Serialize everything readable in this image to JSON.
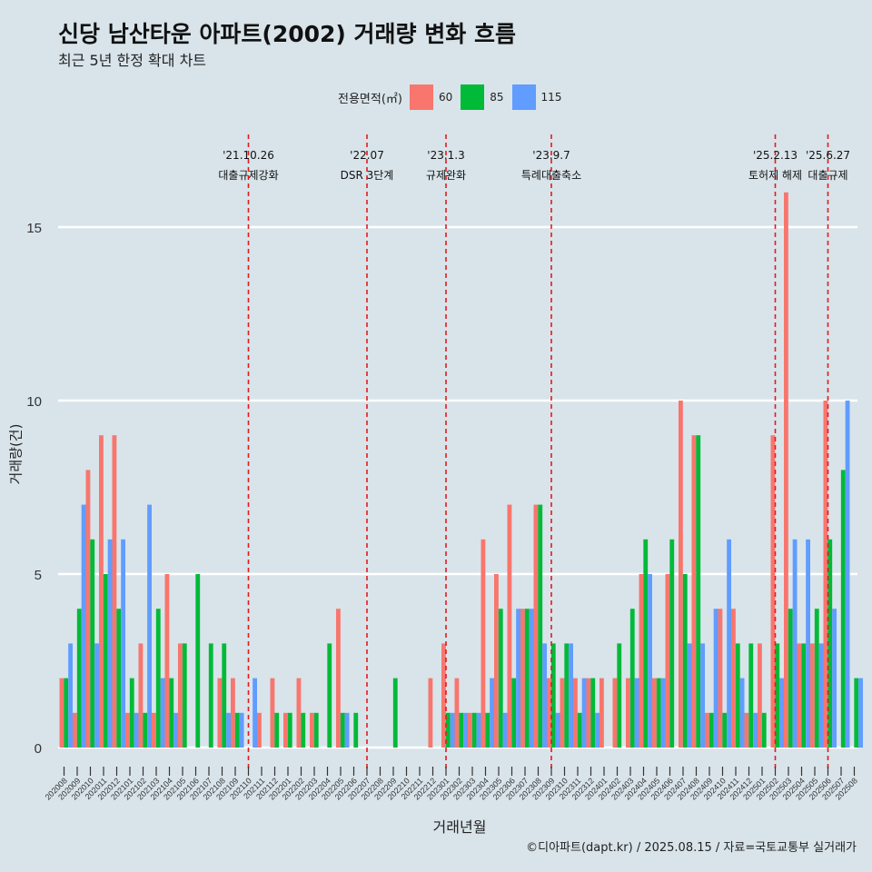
{
  "title": "신당 남산타운 아파트(2002) 거래량 변화 흐름",
  "subtitle": "최근 5년 한정 확대 차트",
  "caption": "©디아파트(dapt.kr) / 2025.08.15 / 자료=국토교통부 실거래가",
  "legend": {
    "title": "전용면적(㎡)",
    "items": [
      {
        "label": "60",
        "color": "#f8766d"
      },
      {
        "label": "85",
        "color": "#00ba38"
      },
      {
        "label": "115",
        "color": "#619cff"
      }
    ]
  },
  "chart_data": {
    "type": "bar",
    "xlabel": "거래년월",
    "ylabel": "거래량(건)",
    "ylim": [
      0,
      16
    ],
    "yticks": [
      0,
      5,
      10,
      15
    ],
    "grid": true,
    "legend_position": "top",
    "categories": [
      "202008",
      "202009",
      "202010",
      "202011",
      "202012",
      "202101",
      "202102",
      "202103",
      "202104",
      "202105",
      "202106",
      "202107",
      "202108",
      "202109",
      "202110",
      "202111",
      "202112",
      "202201",
      "202202",
      "202203",
      "202204",
      "202205",
      "202206",
      "202207",
      "202208",
      "202209",
      "202210",
      "202211",
      "202212",
      "202301",
      "202302",
      "202303",
      "202304",
      "202305",
      "202306",
      "202307",
      "202308",
      "202309",
      "202310",
      "202311",
      "202312",
      "202401",
      "202402",
      "202403",
      "202404",
      "202405",
      "202406",
      "202407",
      "202408",
      "202409",
      "202410",
      "202411",
      "202412",
      "202501",
      "202502",
      "202503",
      "202504",
      "202505",
      "202506",
      "202507",
      "202508"
    ],
    "series": [
      {
        "name": "60",
        "color": "#f8766d",
        "values": [
          2,
          1,
          8,
          9,
          9,
          1,
          3,
          1,
          5,
          3,
          0,
          0,
          2,
          2,
          0,
          1,
          2,
          1,
          2,
          1,
          0,
          4,
          0,
          0,
          0,
          0,
          0,
          0,
          2,
          3,
          2,
          1,
          6,
          5,
          7,
          4,
          7,
          2,
          2,
          2,
          2,
          2,
          2,
          2,
          5,
          2,
          5,
          10,
          9,
          1,
          4,
          4,
          1,
          3,
          9,
          16,
          3,
          3,
          10,
          0,
          0
        ]
      },
      {
        "name": "85",
        "color": "#00ba38",
        "values": [
          2,
          4,
          6,
          5,
          4,
          2,
          1,
          4,
          2,
          3,
          5,
          3,
          3,
          1,
          0,
          0,
          1,
          1,
          1,
          1,
          3,
          1,
          1,
          0,
          0,
          2,
          0,
          0,
          0,
          1,
          1,
          1,
          1,
          4,
          2,
          4,
          7,
          3,
          3,
          1,
          2,
          0,
          3,
          4,
          6,
          2,
          6,
          5,
          9,
          1,
          1,
          3,
          3,
          1,
          3,
          4,
          3,
          4,
          6,
          8,
          2
        ]
      },
      {
        "name": "115",
        "color": "#619cff",
        "values": [
          3,
          7,
          3,
          6,
          6,
          1,
          7,
          2,
          1,
          0,
          0,
          0,
          1,
          1,
          2,
          0,
          0,
          0,
          0,
          0,
          0,
          1,
          0,
          0,
          0,
          0,
          0,
          0,
          0,
          1,
          1,
          1,
          2,
          1,
          4,
          4,
          3,
          1,
          3,
          2,
          1,
          0,
          0,
          2,
          5,
          2,
          0,
          3,
          3,
          4,
          6,
          2,
          1,
          0,
          2,
          6,
          6,
          3,
          4,
          10,
          2
        ]
      }
    ],
    "events": [
      {
        "date": "'21.10.26",
        "label": "대출규제강화",
        "at": "202110"
      },
      {
        "date": "'22.07",
        "label": "DSR 3단계",
        "at": "202207"
      },
      {
        "date": "'23.1.3",
        "label": "규제완화",
        "at": "202301"
      },
      {
        "date": "'23.9.7",
        "label": "특례대출축소",
        "at": "202309"
      },
      {
        "date": "'25.2.13",
        "label": "토허제 해제",
        "at": "202502"
      },
      {
        "date": "'25.6.27",
        "label": "대출규제",
        "at": "202506"
      }
    ]
  }
}
